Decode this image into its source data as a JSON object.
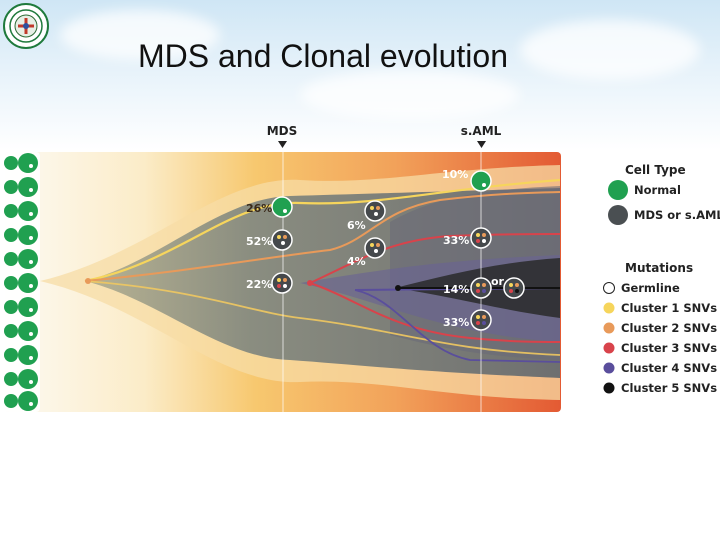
{
  "slide": {
    "title": "MDS and Clonal evolution"
  },
  "timepoints": [
    {
      "label": "MDS"
    },
    {
      "label": "s.AML"
    }
  ],
  "clone_labels": {
    "mds": [
      "26%",
      "52%",
      "22%"
    ],
    "mid": [
      "6%",
      "4%"
    ],
    "aml": [
      "10%",
      "33%",
      "14%",
      "33%"
    ],
    "or_label": "or"
  },
  "legend": {
    "cell_type_title": "Cell Type",
    "cell_types": [
      {
        "label": "Normal",
        "color": "#20a050"
      },
      {
        "label": "MDS or s.AML",
        "color": "#4a4f52"
      }
    ],
    "mutations_title": "Mutations",
    "mutations": [
      {
        "label": "Germline",
        "color": "#ffffff"
      },
      {
        "label": "Cluster 1 SNVs",
        "color": "#f6d55c"
      },
      {
        "label": "Cluster 2 SNVs",
        "color": "#e89a5a"
      },
      {
        "label": "Cluster 3 SNVs",
        "color": "#d8434b"
      },
      {
        "label": "Cluster 4 SNVs",
        "color": "#5a4e9c"
      },
      {
        "label": "Cluster 5 SNVs",
        "color": "#111111"
      }
    ]
  }
}
